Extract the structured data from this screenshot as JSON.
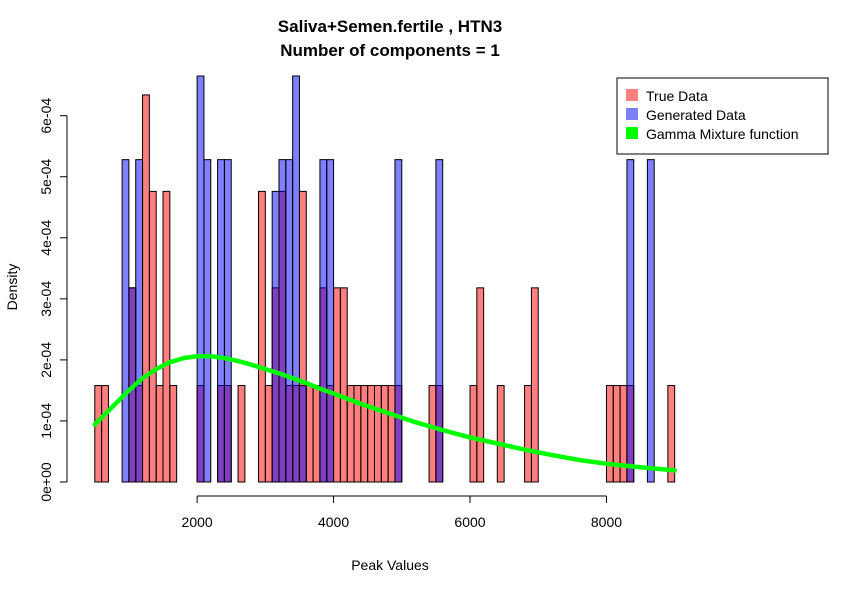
{
  "chart_data": {
    "type": "bar",
    "title_line1": "Saliva+Semen.fertile , HTN3",
    "title_line2": "Number of components =  1",
    "xlabel": "Peak Values",
    "ylabel": "Density",
    "xlim": [
      100,
      9100
    ],
    "ylim": [
      0,
      0.000665
    ],
    "xticks": [
      2000,
      4000,
      6000,
      8000
    ],
    "xtick_labels": [
      "2000",
      "4000",
      "6000",
      "8000"
    ],
    "yticks": [
      0,
      0.0001,
      0.0002,
      0.0003,
      0.0004,
      0.0005,
      0.0006
    ],
    "ytick_labels": [
      "0e+00",
      "1e-04",
      "2e-04",
      "3e-04",
      "4e-04",
      "5e-04",
      "6e-04"
    ],
    "bin_width": 100,
    "legend_position": "top-right",
    "legend": [
      {
        "label": "True Data",
        "color": "#FF8080"
      },
      {
        "label": "Generated Data",
        "color": "#8080FF"
      },
      {
        "label": "Gamma Mixture function",
        "color": "#00FF00"
      }
    ],
    "series": [
      {
        "kind": "histogram",
        "color": "#FF0000",
        "alpha": 0.5,
        "bins_start": [
          500,
          600,
          1000,
          1100,
          1200,
          1300,
          1400,
          1500,
          1600,
          2000,
          2300,
          2400,
          2600,
          2900,
          3000,
          3100,
          3200,
          3300,
          3400,
          3500,
          3600,
          3700,
          3800,
          3900,
          4000,
          4100,
          4200,
          4300,
          4400,
          4500,
          4600,
          4700,
          4800,
          4900,
          5400,
          5500,
          6000,
          6100,
          6400,
          6800,
          6900,
          8000,
          8100,
          8200,
          8300,
          8900
        ],
        "values": [
          0.000158,
          0.000158,
          0.000318,
          0.000158,
          0.000634,
          0.000476,
          0.000158,
          0.000476,
          0.000158,
          0.000158,
          0.000158,
          0.000158,
          0.000158,
          0.000476,
          0.000158,
          0.000318,
          0.000476,
          0.000158,
          0.000158,
          0.000476,
          0.000158,
          0.000158,
          0.000318,
          0.000158,
          0.000318,
          0.000318,
          0.000158,
          0.000158,
          0.000158,
          0.000158,
          0.000158,
          0.000158,
          0.000158,
          0.000158,
          0.000158,
          0.000158,
          0.000158,
          0.000318,
          0.000158,
          0.000158,
          0.000318,
          0.000158,
          0.000158,
          0.000158,
          0.000158,
          0.000158
        ]
      },
      {
        "kind": "histogram",
        "color": "#0000FF",
        "alpha": 0.5,
        "bins_start": [
          900,
          1000,
          1100,
          2000,
          2100,
          2300,
          2400,
          3100,
          3200,
          3300,
          3400,
          3500,
          3800,
          3900,
          4900,
          5500,
          8300,
          8600
        ],
        "values": [
          0.000528,
          0.000318,
          0.000528,
          0.000665,
          0.000528,
          0.000528,
          0.000528,
          0.000476,
          0.000528,
          0.000528,
          0.000665,
          0.000158,
          0.000528,
          0.000528,
          0.000528,
          0.000528,
          0.000528,
          0.000528
        ]
      },
      {
        "kind": "line",
        "name": "Gamma Mixture function",
        "color": "#00FF00",
        "x": [
          500,
          800,
          1000,
          1200,
          1400,
          1600,
          1800,
          2000,
          2200,
          2400,
          2600,
          2800,
          3000,
          3200,
          3400,
          3600,
          3800,
          4000,
          4400,
          4800,
          5200,
          5600,
          6000,
          6400,
          6800,
          7200,
          7600,
          8000,
          8500,
          9000
        ],
        "y": [
          9.4e-05,
          0.000128,
          0.00015,
          0.00017,
          0.000185,
          0.000196,
          0.000203,
          0.000206,
          0.000206,
          0.000203,
          0.000198,
          0.000192,
          0.000185,
          0.000178,
          0.00017,
          0.000162,
          0.000153,
          0.000145,
          0.000128,
          0.000113,
          9.8e-05,
          8.5e-05,
          7.3e-05,
          6.3e-05,
          5.3e-05,
          4.4e-05,
          3.6e-05,
          3e-05,
          2.4e-05,
          1.9e-05
        ]
      }
    ]
  }
}
